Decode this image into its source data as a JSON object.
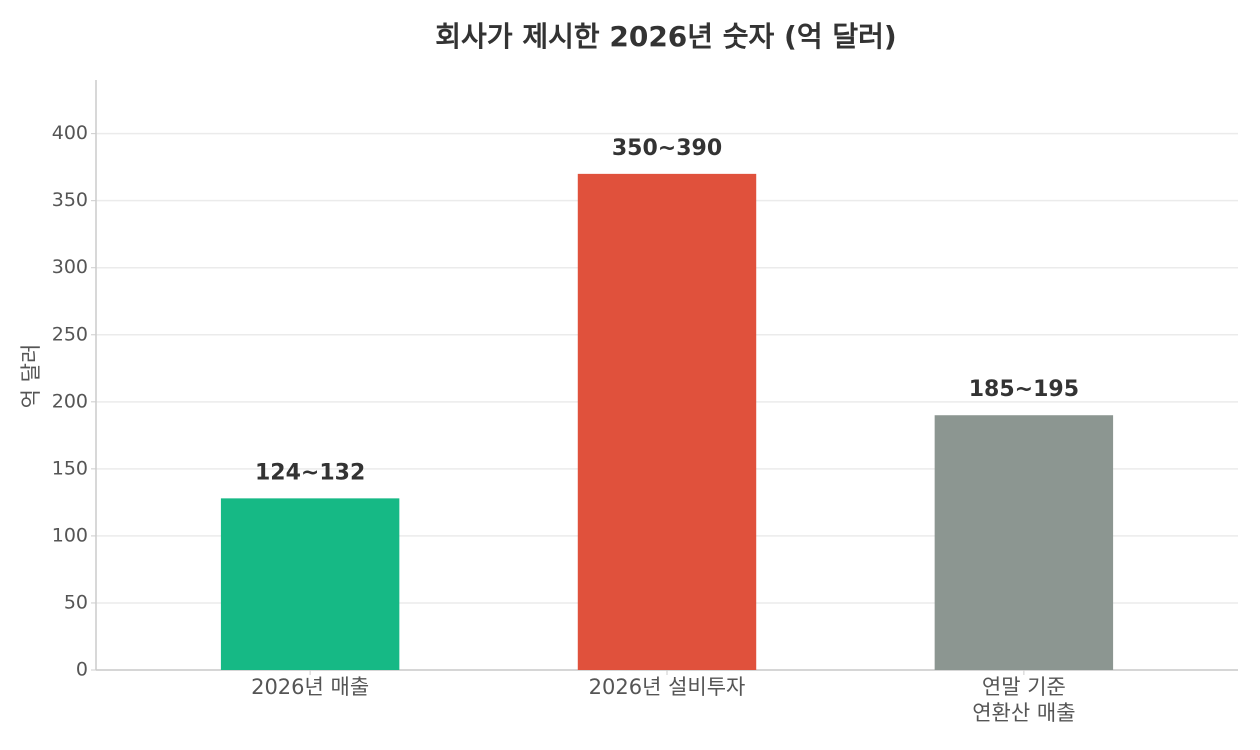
{
  "chart_data": {
    "type": "bar",
    "title": "회사가 제시한 2026년 숫자 (억 달러)",
    "y_label": "억 달러",
    "categories": [
      "2026년 매출",
      "2026년 설비투자",
      "연말 기준\n연환산 매출"
    ],
    "values": [
      128,
      370,
      190
    ],
    "value_labels": [
      "124~132",
      "350~390",
      "185~195"
    ],
    "colors": [
      "#16b985",
      "#e0513c",
      "#8c9691"
    ],
    "ylim": [
      0,
      440
    ],
    "yticks": [
      0,
      50,
      100,
      150,
      200,
      250,
      300,
      350,
      400
    ],
    "grid": true
  }
}
